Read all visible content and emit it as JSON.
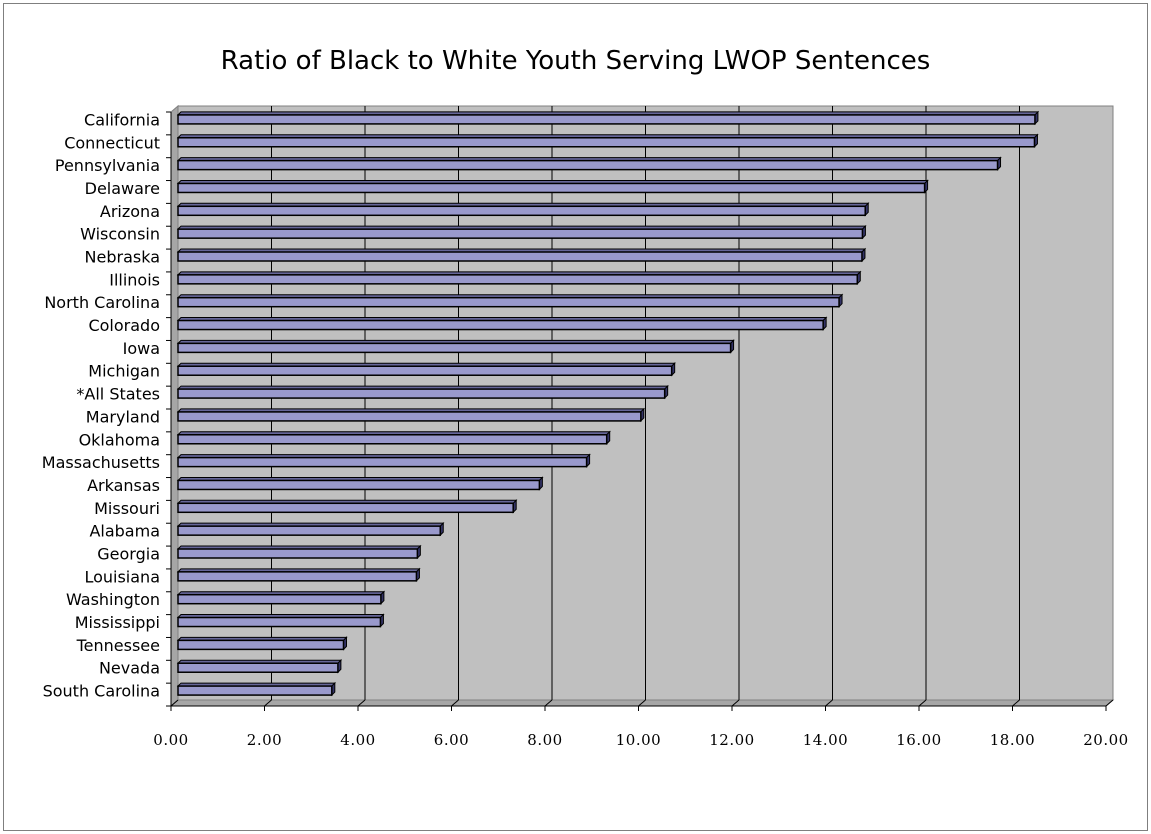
{
  "chart_data": {
    "type": "bar",
    "orientation": "horizontal",
    "title": "Ratio of Black to White Youth Serving LWOP Sentences",
    "xlabel": "",
    "ylabel": "",
    "xlim": [
      0,
      20
    ],
    "x_ticks": [
      "0.00",
      "2.00",
      "4.00",
      "6.00",
      "8.00",
      "10.00",
      "12.00",
      "14.00",
      "16.00",
      "18.00",
      "20.00"
    ],
    "grid": true,
    "bar_color": "#9999cc",
    "plot_background": "#c0c0c0",
    "categories": [
      "California",
      "Connecticut",
      "Pennsylvania",
      "Delaware",
      "Arizona",
      "Wisconsin",
      "Nebraska",
      "Illinois",
      "North Carolina",
      "Colorado",
      "Iowa",
      "Michigan",
      "*All States",
      "Maryland",
      "Oklahoma",
      "Massachusetts",
      "Arkansas",
      "Missouri",
      "Alabama",
      "Georgia",
      "Louisiana",
      "Washington",
      "Mississippi",
      "Tennessee",
      "Nevada",
      "South Carolina"
    ],
    "values": [
      18.33,
      18.32,
      17.53,
      15.97,
      14.7,
      14.64,
      14.63,
      14.53,
      14.14,
      13.8,
      11.82,
      10.56,
      10.41,
      9.9,
      9.17,
      8.74,
      7.73,
      7.17,
      5.61,
      5.12,
      5.1,
      4.34,
      4.33,
      3.54,
      3.42,
      3.29
    ]
  }
}
